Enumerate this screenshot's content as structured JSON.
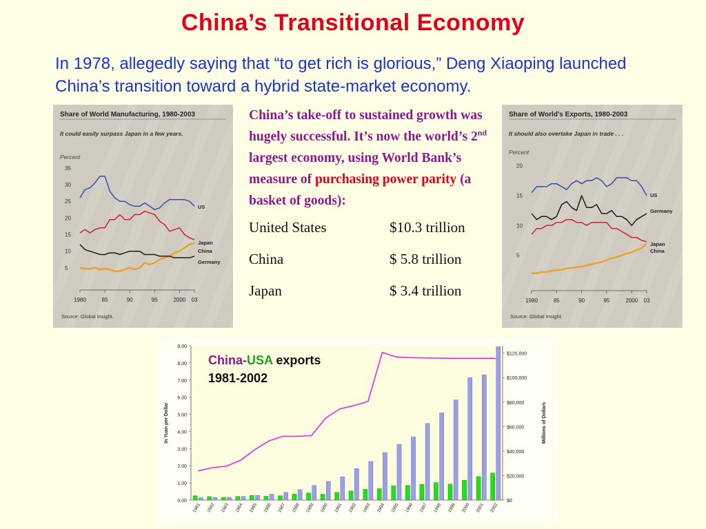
{
  "slide": {
    "title": "China’s Transitional Economy",
    "intro": "In 1978, allegedly saying that “to get rich is glorious,” Deng Xiaoping launched China’s transition toward a hybrid state-market economy.",
    "middle": {
      "lead_1": "China’s take-off to sustained growth was hugely successful. It’s now the world’s 2",
      "lead_sup": "nd",
      "lead_2": " largest economy, using World Bank’s measure of ",
      "lead_red": "purchasing power parity",
      "lead_3": " (a basket of goods):",
      "rows": [
        {
          "country": "United States",
          "value": "$10.3 trillion"
        },
        {
          "country": "China",
          "value": "$ 5.8 trillion"
        },
        {
          "country": "Japan",
          "value": "$ 3.4 trillion"
        }
      ]
    },
    "bottom_label": {
      "part1": "China",
      "dash": "-",
      "part2": "USA",
      "part3": " exports",
      "line2": "1981-2002"
    }
  },
  "colors": {
    "us": "#3b4bb0",
    "japan": "#d21f2b",
    "china": "#f0a020",
    "germany": "#1a1a1a",
    "exports_bar": "#9aa0e6",
    "yuan_bar": "#22dd22",
    "rate_line": "#e02ce8"
  },
  "chart_data": [
    {
      "type": "line",
      "title": "Share of World Manufacturing, 1980-2003",
      "subtitle": "It could easily surpass Japan in a few years.",
      "ylabel": "Percent",
      "source": "Source: Global Insight.",
      "x": [
        1980,
        1981,
        1982,
        1983,
        1984,
        1985,
        1986,
        1987,
        1988,
        1989,
        1990,
        1991,
        1992,
        1993,
        1994,
        1995,
        1996,
        1997,
        1998,
        1999,
        2000,
        2001,
        2002,
        2003
      ],
      "x_ticks": [
        "1980",
        "85",
        "90",
        "95",
        "2000",
        "03"
      ],
      "y_ticks": [
        "5",
        "10",
        "15",
        "20",
        "25",
        "30",
        "35"
      ],
      "ylim": [
        0,
        36
      ],
      "series": [
        {
          "name": "US",
          "values": [
            26,
            28.5,
            29,
            30.5,
            32.5,
            32.5,
            28,
            26,
            25,
            25,
            24,
            23.5,
            23.5,
            24.5,
            23.5,
            22.5,
            23,
            24.5,
            25.5,
            25.5,
            25.5,
            25.5,
            25,
            23.5
          ]
        },
        {
          "name": "Japan",
          "values": [
            15.5,
            16.5,
            15.5,
            16.5,
            17,
            17,
            19.5,
            19.5,
            21,
            19.5,
            19.5,
            21,
            21,
            22,
            21.5,
            21,
            19,
            18,
            16,
            16.5,
            17,
            15,
            14,
            13.5
          ]
        },
        {
          "name": "China",
          "values": [
            5,
            4.7,
            4.7,
            5,
            4.5,
            4.8,
            4.5,
            4,
            4,
            4.5,
            5,
            4.5,
            5,
            6.5,
            6,
            6.5,
            7.5,
            8,
            8.5,
            9.5,
            10,
            11,
            12,
            12.5
          ]
        },
        {
          "name": "Germany",
          "values": [
            12,
            10.5,
            10,
            9.5,
            9,
            9,
            9.5,
            9.5,
            9,
            9.5,
            10,
            10,
            10,
            9,
            9,
            9,
            8.5,
            8.5,
            8.5,
            8,
            8,
            8,
            8,
            8.5
          ]
        }
      ]
    },
    {
      "type": "line",
      "title": "Share of World's Exports, 1980-2003",
      "subtitle": "It should also overtake Japan in trade . . .",
      "ylabel": "Percent",
      "source": "Source: Global Insight.",
      "x": [
        1980,
        1981,
        1982,
        1983,
        1984,
        1985,
        1986,
        1987,
        1988,
        1989,
        1990,
        1991,
        1992,
        1993,
        1994,
        1995,
        1996,
        1997,
        1998,
        1999,
        2000,
        2001,
        2002,
        2003
      ],
      "x_ticks": [
        "1980",
        "85",
        "90",
        "95",
        "2000",
        "03"
      ],
      "y_ticks": [
        "5",
        "10",
        "15",
        "20"
      ],
      "ylim": [
        0,
        21
      ],
      "series": [
        {
          "name": "US",
          "values": [
            15.5,
            16.5,
            16.5,
            16.5,
            17,
            17,
            16.5,
            16,
            17,
            17.5,
            17,
            17.5,
            17.5,
            18,
            17.5,
            16.5,
            17,
            18,
            18,
            18,
            17.5,
            17.5,
            16.5,
            15
          ]
        },
        {
          "name": "Germany",
          "values": [
            12,
            11,
            11.5,
            11.5,
            11,
            11.5,
            13.5,
            14,
            13,
            12.5,
            15,
            13,
            13,
            13.5,
            12,
            12,
            12.5,
            11.5,
            11.5,
            11,
            10,
            11,
            11.5,
            12
          ]
        },
        {
          "name": "Japan",
          "values": [
            8.5,
            9.5,
            9.5,
            10,
            10,
            10.5,
            10.5,
            11,
            11,
            10.5,
            10.5,
            10,
            10.5,
            10.5,
            10.5,
            10.5,
            9.5,
            9.5,
            9,
            8.5,
            8,
            8,
            7.5,
            7.3
          ]
        },
        {
          "name": "China",
          "values": [
            2,
            2,
            2.2,
            2.2,
            2.4,
            2.5,
            2.6,
            2.8,
            2.9,
            3,
            3.1,
            3.3,
            3.5,
            3.7,
            3.9,
            4.2,
            4.5,
            4.7,
            5,
            5.3,
            5.5,
            5.9,
            6.2,
            7
          ]
        }
      ]
    },
    {
      "type": "bar",
      "categories": [
        "1981",
        "1982",
        "1983",
        "1984",
        "1985",
        "1986",
        "1987",
        "1988",
        "1989",
        "1990",
        "1991",
        "1992",
        "1993",
        "1994",
        "1995",
        "1996",
        "1997",
        "1998",
        "1999",
        "2000",
        "2001",
        "2002"
      ],
      "ylabel": "In Yuan per Dollar",
      "y2label": "Millions of Dollars",
      "y_ticks": [
        "0.00",
        "1.00",
        "2.00",
        "3.00",
        "4.00",
        "5.00",
        "6.00",
        "7.00",
        "8.00",
        "9.00"
      ],
      "y2_ticks": [
        "$0",
        "$20,000",
        "$40,000",
        "$60,000",
        "$80,000",
        "$100,000",
        "$120,000"
      ],
      "ylim": [
        0,
        9
      ],
      "y2lim": [
        0,
        126000
      ],
      "series": [
        {
          "kind": "bar",
          "axis": "right",
          "values": [
            2000,
            2200,
            2200,
            3000,
            3900,
            4800,
            6300,
            8500,
            12000,
            15200,
            19000,
            25700,
            31500,
            38800,
            45500,
            51500,
            62600,
            71200,
            81800,
            100000,
            102300,
            125200
          ]
        },
        {
          "kind": "bar",
          "axis": "right",
          "values": [
            3600,
            2900,
            2200,
            3000,
            3900,
            3100,
            3500,
            5000,
            5800,
            4800,
            6300,
            7400,
            8800,
            9300,
            11700,
            12000,
            12800,
            14300,
            13100,
            16200,
            19200,
            22100
          ]
        },
        {
          "kind": "line",
          "axis": "left",
          "values": [
            1.7,
            1.89,
            1.98,
            2.32,
            2.94,
            3.45,
            3.72,
            3.72,
            3.76,
            4.78,
            5.32,
            5.51,
            5.76,
            8.62,
            8.35,
            8.31,
            8.29,
            8.28,
            8.27,
            8.27,
            8.27,
            8.27
          ]
        }
      ]
    }
  ]
}
